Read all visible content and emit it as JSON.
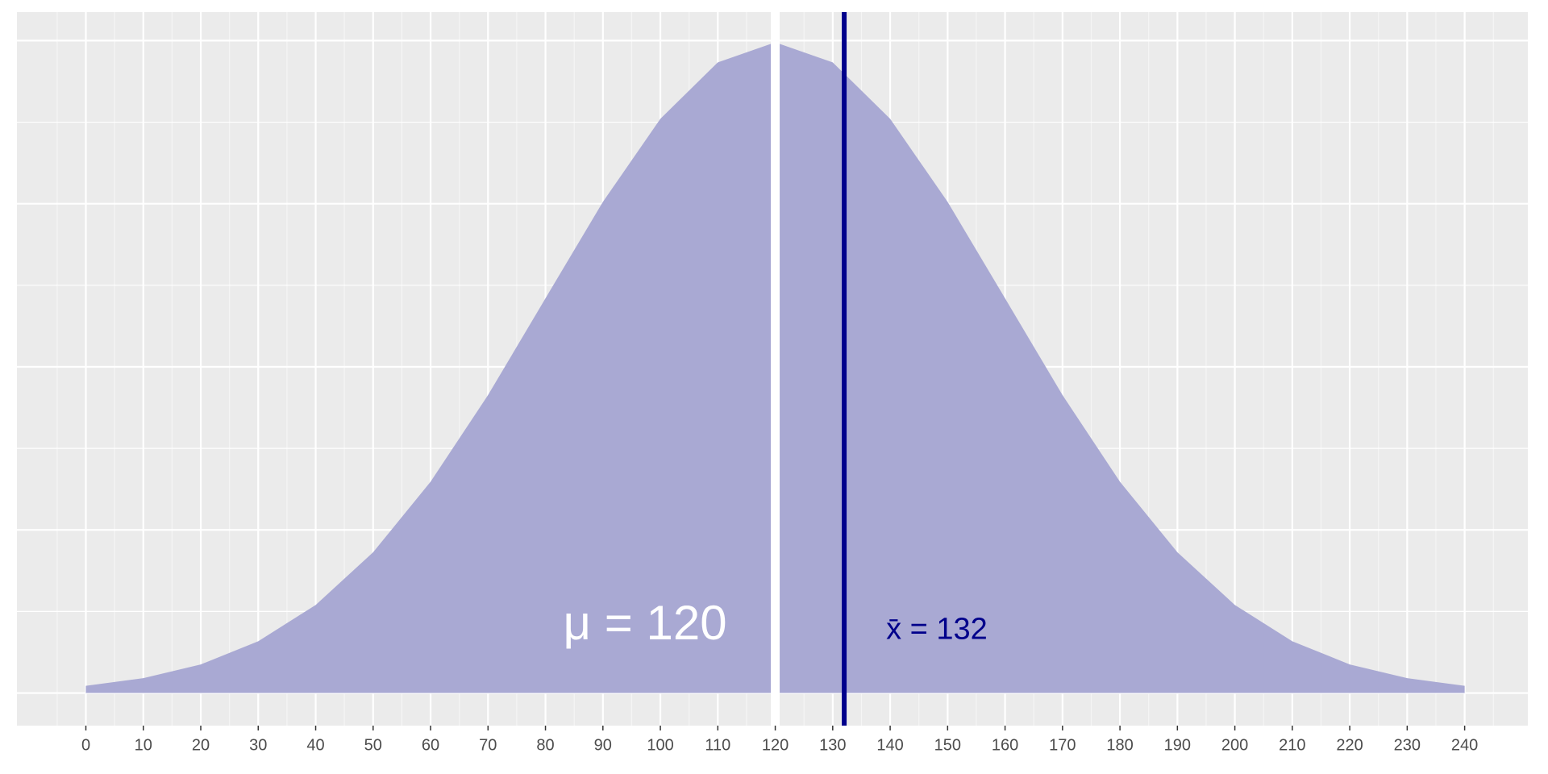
{
  "chart_data": {
    "type": "area",
    "x": [
      0,
      10,
      20,
      30,
      40,
      50,
      60,
      70,
      80,
      90,
      100,
      110,
      120,
      130,
      140,
      150,
      160,
      170,
      180,
      190,
      200,
      210,
      220,
      230,
      240
    ],
    "values": [
      0.0001108,
      0.0002273,
      0.0004382,
      0.0007935,
      0.0013498,
      0.0021571,
      0.003238,
      0.0045664,
      0.0060495,
      0.0075287,
      0.008802,
      0.0096671,
      0.0099736,
      0.0096671,
      0.008802,
      0.0075287,
      0.0060495,
      0.0045664,
      0.003238,
      0.0021571,
      0.0013498,
      0.0007935,
      0.0004382,
      0.0002273,
      0.0001108
    ],
    "color": "#a9a9d3",
    "xlim": [
      -12,
      251
    ],
    "ylim": [
      -0.0005,
      0.0104375
    ],
    "xticks": [
      0,
      10,
      20,
      30,
      40,
      50,
      60,
      70,
      80,
      90,
      100,
      110,
      120,
      130,
      140,
      150,
      160,
      170,
      180,
      190,
      200,
      210,
      220,
      230,
      240
    ],
    "xminor": [
      -5,
      5,
      15,
      25,
      35,
      45,
      55,
      65,
      75,
      85,
      95,
      105,
      115,
      125,
      135,
      145,
      155,
      165,
      175,
      185,
      195,
      205,
      215,
      225,
      235,
      245
    ],
    "ygrid": [
      0,
      0.00125,
      0.0025,
      0.00375,
      0.005,
      0.00625,
      0.0075,
      0.00875,
      0.01
    ],
    "grid": true,
    "vlines": [
      {
        "x": 120,
        "color": "#ffffff",
        "label": "μ = 120"
      },
      {
        "x": 132,
        "color": "#00008b",
        "label": "x̄ = 132"
      }
    ]
  }
}
